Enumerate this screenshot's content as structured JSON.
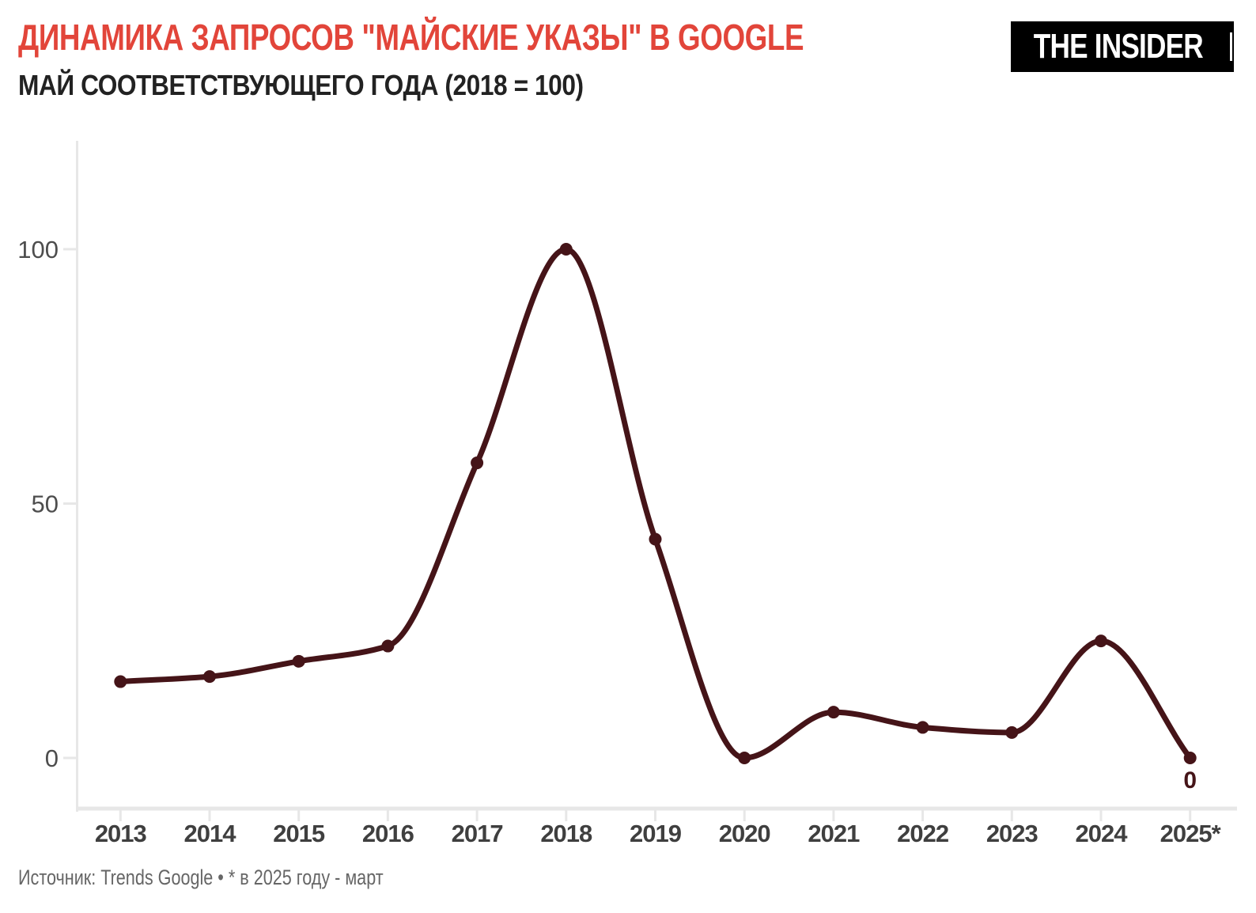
{
  "header": {
    "title": "ДИНАМИКА ЗАПРОСОВ \"МАЙСКИЕ УКАЗЫ\" В GOOGLE",
    "subtitle": "МАЙ СООТВЕТСТВУЮЩЕГО ГОДА (2018 = 100)",
    "logo_text": "THE INSIDER"
  },
  "footer": {
    "source": "Источник: Trends Google • * в 2025 году - март"
  },
  "chart_data": {
    "type": "line",
    "title": "ДИНАМИКА ЗАПРОСОВ \"МАЙСКИЕ УКАЗЫ\" В GOOGLE",
    "subtitle": "МАЙ СООТВЕТСТВУЮЩЕГО ГОДА (2018 = 100)",
    "categories": [
      "2013",
      "2014",
      "2015",
      "2016",
      "2017",
      "2018",
      "2019",
      "2020",
      "2021",
      "2022",
      "2023",
      "2024",
      "2025*"
    ],
    "values": [
      15,
      16,
      19,
      22,
      58,
      100,
      43,
      0,
      9,
      6,
      5,
      23,
      0
    ],
    "y_ticks": [
      "0",
      "50",
      "100"
    ],
    "y_tick_values": [
      0,
      50,
      100
    ],
    "ylim": [
      0,
      121
    ],
    "xlabel": "",
    "ylabel": "",
    "grid": "off",
    "legend": "none",
    "end_point_label": "0",
    "interpolation": "monotone"
  },
  "colors": {
    "title_red": "#e2453a",
    "subtitle_dark": "#222222",
    "line": "#451418",
    "axis_gray": "#e7e7e7",
    "x_label_gray": "#3f3f3f",
    "y_label_gray": "#4d4d4d",
    "footer_gray": "#666666",
    "logo_bg": "#000000",
    "logo_fg": "#ffffff"
  }
}
